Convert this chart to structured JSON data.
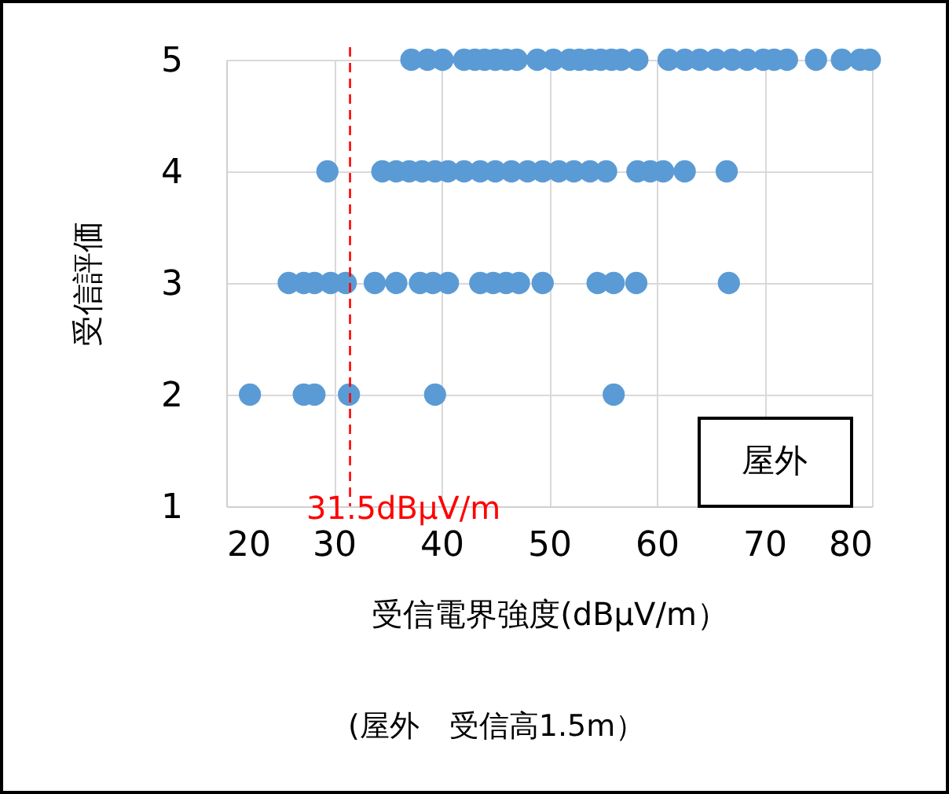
{
  "chart_data": {
    "type": "scatter",
    "xlabel": "受信電界強度(dBμV/m）",
    "ylabel": "受信評価",
    "annotations": [
      "屋外",
      "(屋外　受信高1.5m）"
    ],
    "series": [
      {
        "color": "#5b9bd5",
        "x": [
          37.2,
          38.7,
          40.1,
          42.1,
          43.1,
          44.0,
          45.0,
          46.0,
          47.0,
          48.9,
          50.4,
          51.9,
          52.8,
          53.8,
          54.8,
          55.8,
          56.7,
          58.2,
          61.1,
          62.6,
          64.0,
          65.5,
          67.0,
          68.4,
          69.9,
          70.9,
          72.1,
          74.8,
          77.2,
          78.9,
          79.8
        ],
        "values": [
          5,
          5,
          5,
          5,
          5,
          5,
          5,
          5,
          5,
          5,
          5,
          5,
          5,
          5,
          5,
          5,
          5,
          5,
          5,
          5,
          5,
          5,
          5,
          5,
          5,
          5,
          5,
          5,
          5,
          5,
          5
        ]
      },
      {
        "color": "#5b9bd5",
        "x": [
          29.4,
          34.5,
          35.8,
          37.0,
          38.2,
          39.4,
          40.6,
          42.1,
          43.6,
          45.0,
          46.5,
          48.0,
          49.4,
          50.9,
          52.3,
          53.8,
          55.3,
          58.2,
          59.4,
          60.6,
          62.6,
          66.5
        ],
        "values": [
          4,
          4,
          4,
          4,
          4,
          4,
          4,
          4,
          4,
          4,
          4,
          4,
          4,
          4,
          4,
          4,
          4,
          4,
          4,
          4,
          4,
          4
        ]
      },
      {
        "color": "#5b9bd5",
        "x": [
          25.8,
          27.2,
          28.2,
          29.7,
          31.1,
          33.8,
          35.8,
          38.0,
          39.2,
          40.6,
          43.6,
          44.8,
          46.0,
          47.2,
          49.4,
          54.5,
          56.0,
          58.1,
          66.7
        ],
        "values": [
          3,
          3,
          3,
          3,
          3,
          3,
          3,
          3,
          3,
          3,
          3,
          3,
          3,
          3,
          3,
          3,
          3,
          3,
          3
        ]
      },
      {
        "color": "#5b9bd5",
        "x": [
          22.2,
          27.2,
          28.2,
          31.4,
          39.4,
          56.0
        ],
        "values": [
          2,
          2,
          2,
          2,
          2,
          2
        ]
      }
    ],
    "xlim": [
      20,
      80
    ],
    "xticks": [
      20,
      30,
      40,
      50,
      60,
      70,
      80
    ],
    "ylim": [
      1,
      5
    ],
    "yticks": [
      1,
      2,
      3,
      4,
      5
    ],
    "ref_lines": [
      {
        "axis": "x",
        "value": 31.5,
        "label": "31.5dBμV/m",
        "color": "#ff0000",
        "line_style": "dashed"
      }
    ],
    "grid": true,
    "marker": "circle"
  }
}
